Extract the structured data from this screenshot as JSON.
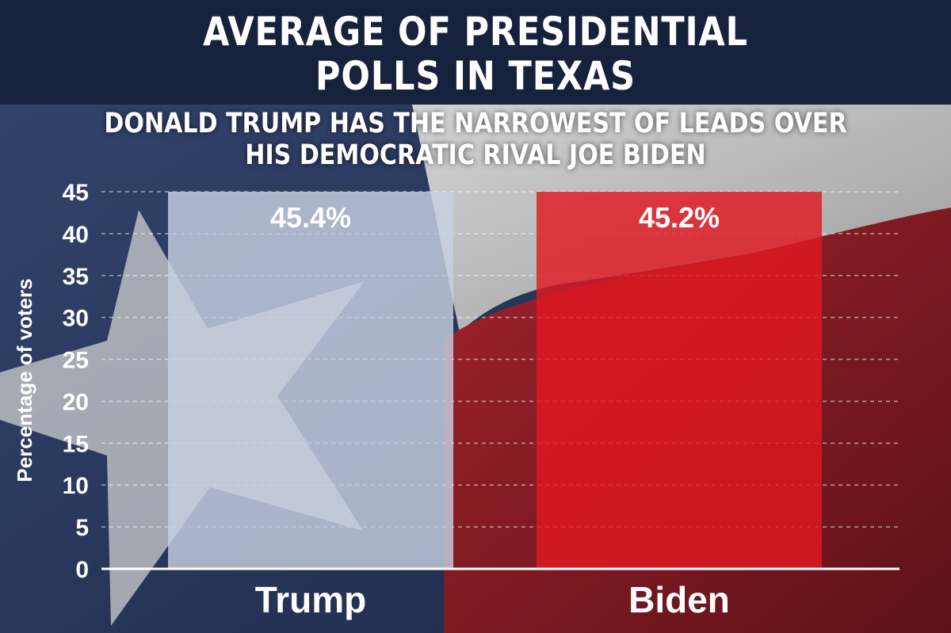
{
  "header": {
    "title_line1": "AVERAGE OF PRESIDENTIAL",
    "title_line2": "POLLS IN TEXAS",
    "subtitle_line1": "DONALD TRUMP HAS THE NARROWEST OF LEADS OVER",
    "subtitle_line2": "HIS DEMOCRATIC RIVAL JOE BIDEN"
  },
  "colors": {
    "header_bg": "#16213c",
    "flag_blue": "#2b3a60",
    "flag_white": "#c9c9c9",
    "flag_red": "#8f1f28",
    "trump_bar": "#c7d0e2",
    "biden_bar": "#e01922"
  },
  "chart_data": {
    "type": "bar",
    "title": "AVERAGE OF PRESIDENTIAL POLLS IN TEXAS",
    "subtitle": "DONALD TRUMP HAS THE NARROWEST OF LEADS OVER HIS DEMOCRATIC RIVAL JOE BIDEN",
    "categories": [
      "Trump",
      "Biden"
    ],
    "values": [
      45.4,
      45.2
    ],
    "value_labels": [
      "45.4%",
      "45.2%"
    ],
    "bar_colors": [
      "#c7d0e2",
      "#e01922"
    ],
    "xlabel": "",
    "ylabel": "Percentage of voters",
    "ylim": [
      0,
      45
    ],
    "yticks": [
      0,
      5,
      10,
      15,
      20,
      25,
      30,
      35,
      40,
      45
    ],
    "grid": true,
    "legend": "none"
  }
}
